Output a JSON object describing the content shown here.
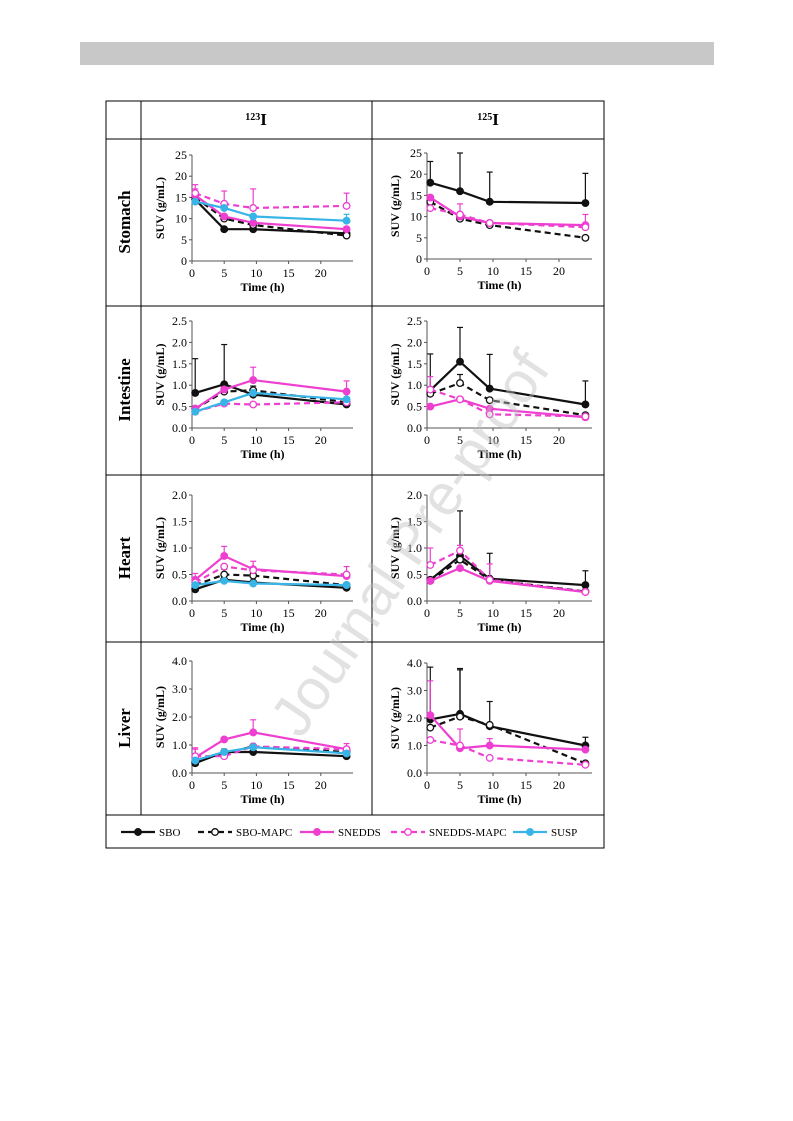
{
  "watermark": "Journal Pre-proof",
  "column_headers": [
    {
      "mass": "123",
      "element": "I"
    },
    {
      "mass": "125",
      "element": "I"
    }
  ],
  "row_headers": [
    "Stomach",
    "Intestine",
    "Heart",
    "Liver"
  ],
  "legend": [
    {
      "name": "SBO",
      "color": "#111111",
      "dashed": false,
      "open": false
    },
    {
      "name": "SBO-MAPC",
      "color": "#111111",
      "dashed": true,
      "open": true
    },
    {
      "name": "SNEDDS",
      "color": "#ee3fd0",
      "dashed": false,
      "open": false
    },
    {
      "name": "SNEDDS-MAPC",
      "color": "#ee3fd0",
      "dashed": true,
      "open": true
    },
    {
      "name": "SUSP",
      "color": "#38b5e6",
      "dashed": false,
      "open": false
    }
  ],
  "chart_data": [
    {
      "organ": "Stomach",
      "isotope": "123I",
      "type": "line",
      "xlabel": "Time (h)",
      "ylabel": "SUV (g/mL)",
      "xlim": [
        0,
        25
      ],
      "xticks": [
        "0",
        "5",
        "10",
        "15",
        "20"
      ],
      "ylim": [
        0,
        25
      ],
      "yticks": [
        "0",
        "5",
        "10",
        "15",
        "20",
        "25"
      ],
      "x": [
        0.5,
        5,
        9.5,
        24
      ],
      "series": [
        {
          "name": "SBO",
          "values": [
            14.5,
            7.5,
            7.5,
            6.5
          ],
          "err": [
            0.5,
            0,
            0,
            0
          ]
        },
        {
          "name": "SBO-MAPC",
          "values": [
            15,
            10,
            8.5,
            6
          ],
          "err": [
            0.5,
            0,
            0,
            0
          ]
        },
        {
          "name": "SNEDDS",
          "values": [
            15.5,
            10.5,
            9,
            7.5
          ],
          "err": [
            1.5,
            0,
            0,
            0
          ]
        },
        {
          "name": "SNEDDS-MAPC",
          "values": [
            16,
            13.5,
            12.5,
            13
          ],
          "err": [
            2,
            3,
            4.5,
            3
          ]
        },
        {
          "name": "SUSP",
          "values": [
            14,
            12.5,
            10.5,
            9.5
          ],
          "err": [
            0.5,
            0,
            0,
            1.5
          ]
        }
      ]
    },
    {
      "organ": "Stomach",
      "isotope": "125I",
      "type": "line",
      "xlabel": "Time (h)",
      "ylabel": "SUV (g/mL)",
      "xlim": [
        0,
        25
      ],
      "xticks": [
        "0",
        "5",
        "10",
        "15",
        "20"
      ],
      "ylim": [
        0,
        25
      ],
      "yticks": [
        "0",
        "5",
        "10",
        "15",
        "20",
        "25"
      ],
      "x": [
        0.5,
        5,
        9.5,
        24
      ],
      "series": [
        {
          "name": "SBO",
          "values": [
            18,
            16,
            13.5,
            13.2
          ],
          "err": [
            5,
            9,
            7,
            7
          ]
        },
        {
          "name": "SBO-MAPC",
          "values": [
            13.5,
            9.5,
            8,
            5
          ],
          "err": [
            0.5,
            0,
            0,
            0
          ]
        },
        {
          "name": "SNEDDS",
          "values": [
            14.5,
            10,
            8.5,
            8
          ],
          "err": [
            0.5,
            0,
            0,
            0
          ]
        },
        {
          "name": "SNEDDS-MAPC",
          "values": [
            12,
            10.5,
            8.5,
            7.5
          ],
          "err": [
            0,
            2.5,
            0,
            3
          ]
        }
      ]
    },
    {
      "organ": "Intestine",
      "isotope": "123I",
      "type": "line",
      "xlabel": "Time (h)",
      "ylabel": "SUV (g/mL)",
      "xlim": [
        0,
        25
      ],
      "xticks": [
        "0",
        "5",
        "10",
        "15",
        "20"
      ],
      "ylim": [
        0,
        2.5
      ],
      "yticks": [
        "0.0",
        "0.5",
        "1.0",
        "1.5",
        "2.0",
        "2.5"
      ],
      "x": [
        0.5,
        5,
        9.5,
        24
      ],
      "series": [
        {
          "name": "SBO",
          "values": [
            0.82,
            1.02,
            0.78,
            0.55
          ],
          "err": [
            0.8,
            0.93,
            0,
            0
          ]
        },
        {
          "name": "SBO-MAPC",
          "values": [
            0.45,
            0.85,
            0.88,
            0.6
          ],
          "err": [
            0,
            0,
            0.1,
            0
          ]
        },
        {
          "name": "SNEDDS",
          "values": [
            0.45,
            0.9,
            1.12,
            0.85
          ],
          "err": [
            0,
            0,
            0.3,
            0.25
          ]
        },
        {
          "name": "SNEDDS-MAPC",
          "values": [
            0.38,
            0.57,
            0.55,
            0.6
          ],
          "err": [
            0,
            0,
            0,
            0
          ]
        },
        {
          "name": "SUSP",
          "values": [
            0.38,
            0.6,
            0.82,
            0.67
          ],
          "err": [
            0,
            0,
            0,
            0
          ]
        }
      ]
    },
    {
      "organ": "Intestine",
      "isotope": "125I",
      "type": "line",
      "xlabel": "Time (h)",
      "ylabel": "SUV (g/mL)",
      "xlim": [
        0,
        25
      ],
      "xticks": [
        "0",
        "5",
        "10",
        "15",
        "20"
      ],
      "ylim": [
        0,
        2.5
      ],
      "yticks": [
        "0.0",
        "0.5",
        "1.0",
        "1.5",
        "2.0",
        "2.5"
      ],
      "x": [
        0.5,
        5,
        9.5,
        24
      ],
      "series": [
        {
          "name": "SBO",
          "values": [
            0.88,
            1.55,
            0.92,
            0.55
          ],
          "err": [
            0.85,
            0.8,
            0.8,
            0.55
          ]
        },
        {
          "name": "SBO-MAPC",
          "values": [
            0.8,
            1.05,
            0.65,
            0.3
          ],
          "err": [
            0,
            0.2,
            0,
            0
          ]
        },
        {
          "name": "SNEDDS",
          "values": [
            0.5,
            0.67,
            0.45,
            0.25
          ],
          "err": [
            0,
            0,
            0,
            0
          ]
        },
        {
          "name": "SNEDDS-MAPC",
          "values": [
            0.9,
            0.67,
            0.32,
            0.27
          ],
          "err": [
            0.3,
            0,
            0,
            0
          ]
        }
      ]
    },
    {
      "organ": "Heart",
      "isotope": "123I",
      "type": "line",
      "xlabel": "Time (h)",
      "ylabel": "SUV (g/mL)",
      "xlim": [
        0,
        25
      ],
      "xticks": [
        "0",
        "5",
        "10",
        "15",
        "20"
      ],
      "ylim": [
        0,
        2.0
      ],
      "yticks": [
        "0.0",
        "0.5",
        "1.0",
        "1.5",
        "2.0"
      ],
      "x": [
        0.5,
        5,
        9.5,
        24
      ],
      "series": [
        {
          "name": "SBO",
          "values": [
            0.22,
            0.4,
            0.35,
            0.25
          ],
          "err": [
            0,
            0,
            0,
            0
          ]
        },
        {
          "name": "SBO-MAPC",
          "values": [
            0.3,
            0.5,
            0.48,
            0.3
          ],
          "err": [
            0,
            0.1,
            0,
            0
          ]
        },
        {
          "name": "SNEDDS",
          "values": [
            0.4,
            0.85,
            0.6,
            0.47
          ],
          "err": [
            0.12,
            0.18,
            0.15,
            0.18
          ]
        },
        {
          "name": "SNEDDS-MAPC",
          "values": [
            0.35,
            0.65,
            0.58,
            0.5
          ],
          "err": [
            0,
            0,
            0,
            0
          ]
        },
        {
          "name": "SUSP",
          "values": [
            0.3,
            0.38,
            0.33,
            0.3
          ],
          "err": [
            0,
            0,
            0,
            0
          ]
        }
      ]
    },
    {
      "organ": "Heart",
      "isotope": "125I",
      "type": "line",
      "xlabel": "Time (h)",
      "ylabel": "SUV (g/mL)",
      "xlim": [
        0,
        25
      ],
      "xticks": [
        "0",
        "5",
        "10",
        "15",
        "20"
      ],
      "ylim": [
        0,
        2.0
      ],
      "yticks": [
        "0.0",
        "0.5",
        "1.0",
        "1.5",
        "2.0"
      ],
      "x": [
        0.5,
        5,
        9.5,
        24
      ],
      "series": [
        {
          "name": "SBO",
          "values": [
            0.4,
            0.85,
            0.42,
            0.3
          ],
          "err": [
            0,
            0.85,
            0.48,
            0.27
          ]
        },
        {
          "name": "SBO-MAPC",
          "values": [
            0.38,
            0.78,
            0.4,
            0.18
          ],
          "err": [
            0,
            0,
            0,
            0
          ]
        },
        {
          "name": "SNEDDS",
          "values": [
            0.38,
            0.62,
            0.38,
            0.17
          ],
          "err": [
            0,
            0,
            0,
            0
          ]
        },
        {
          "name": "SNEDDS-MAPC",
          "values": [
            0.68,
            0.95,
            0.4,
            0.17
          ],
          "err": [
            0.32,
            0.1,
            0.3,
            0
          ]
        }
      ]
    },
    {
      "organ": "Liver",
      "isotope": "123I",
      "type": "line",
      "xlabel": "Time (h)",
      "ylabel": "SUV (g/mL)",
      "xlim": [
        0,
        25
      ],
      "xticks": [
        "0",
        "5",
        "10",
        "15",
        "20"
      ],
      "ylim": [
        0,
        4.0
      ],
      "yticks": [
        "0.0",
        "1.0",
        "2.0",
        "3.0",
        "4.0"
      ],
      "x": [
        0.5,
        5,
        9.5,
        24
      ],
      "series": [
        {
          "name": "SBO",
          "values": [
            0.35,
            0.75,
            0.75,
            0.6
          ],
          "err": [
            0,
            0,
            0,
            0
          ]
        },
        {
          "name": "SBO-MAPC",
          "values": [
            0.4,
            0.7,
            0.95,
            0.75
          ],
          "err": [
            0,
            0.15,
            0,
            0
          ]
        },
        {
          "name": "SNEDDS",
          "values": [
            0.55,
            1.2,
            1.45,
            0.85
          ],
          "err": [
            0.3,
            0,
            0.45,
            0.2
          ]
        },
        {
          "name": "SNEDDS-MAPC",
          "values": [
            0.6,
            0.6,
            0.95,
            0.85
          ],
          "err": [
            0.3,
            0,
            0,
            0
          ]
        },
        {
          "name": "SUSP",
          "values": [
            0.45,
            0.75,
            0.92,
            0.7
          ],
          "err": [
            0,
            0,
            0,
            0
          ]
        }
      ]
    },
    {
      "organ": "Liver",
      "isotope": "125I",
      "type": "line",
      "xlabel": "Time (h)",
      "ylabel": "SUV (g/mL)",
      "xlim": [
        0,
        25
      ],
      "xticks": [
        "0",
        "5",
        "10",
        "15",
        "20"
      ],
      "ylim": [
        0,
        4.0
      ],
      "yticks": [
        "0.0",
        "1.0",
        "2.0",
        "3.0",
        "4.0"
      ],
      "x": [
        0.5,
        5,
        9.5,
        24
      ],
      "series": [
        {
          "name": "SBO",
          "values": [
            1.95,
            2.15,
            1.7,
            1.0
          ],
          "err": [
            1.9,
            1.65,
            0.9,
            0.3
          ]
        },
        {
          "name": "SBO-MAPC",
          "values": [
            1.65,
            2.05,
            1.75,
            0.35
          ],
          "err": [
            0,
            1.7,
            0,
            0
          ]
        },
        {
          "name": "SNEDDS",
          "values": [
            2.1,
            0.9,
            1.0,
            0.85
          ],
          "err": [
            1.25,
            0.7,
            0.25,
            0
          ]
        },
        {
          "name": "SNEDDS-MAPC",
          "values": [
            1.2,
            1.0,
            0.55,
            0.3
          ],
          "err": [
            0,
            0,
            0,
            0
          ]
        }
      ]
    }
  ]
}
